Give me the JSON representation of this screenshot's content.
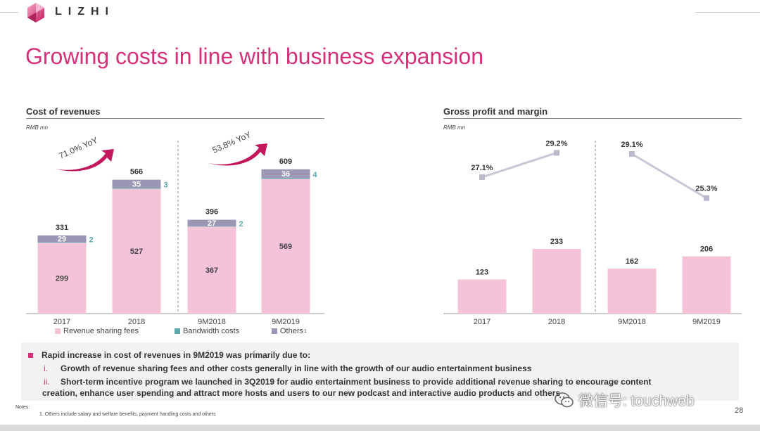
{
  "header": {
    "logo_text": "LIZHI",
    "title": "Growing costs in line with business expansion",
    "brand_color": "#d4317a"
  },
  "cost_chart": {
    "section_title": "Cost of revenues",
    "unit": "RMB mn",
    "arrow_labels": [
      "71.0% YoY",
      "53.8% YoY"
    ],
    "legend": [
      {
        "label": "Revenue sharing fees",
        "color": "#f4c3d8"
      },
      {
        "label": "Bandwidth costs",
        "color": "#5aa9ad"
      },
      {
        "label": "Others",
        "color": "#9c95b3",
        "sup": "1"
      }
    ]
  },
  "gross_chart": {
    "section_title": "Gross profit and margin",
    "unit": "RMB mn"
  },
  "chart_data": [
    {
      "type": "bar",
      "title": "Cost of revenues",
      "unit": "RMB mn",
      "categories": [
        "2017",
        "2018",
        "9M2018",
        "9M2019"
      ],
      "series": [
        {
          "name": "Revenue sharing fees",
          "values": [
            299,
            527,
            367,
            569
          ],
          "color": "#f4c3d8"
        },
        {
          "name": "Bandwidth costs",
          "values": [
            2,
            3,
            2,
            4
          ],
          "color": "#5aa9ad"
        },
        {
          "name": "Others",
          "values": [
            29,
            35,
            27,
            36
          ],
          "color": "#9c95b3"
        }
      ],
      "totals": [
        331,
        566,
        396,
        609
      ],
      "growth": [
        {
          "label": "71.0% YoY",
          "from": "2017",
          "to": "2018"
        },
        {
          "label": "53.8% YoY",
          "from": "9M2018",
          "to": "9M2019"
        }
      ]
    },
    {
      "type": "bar",
      "title": "Gross profit and margin",
      "unit": "RMB mn",
      "categories": [
        "2017",
        "2018",
        "9M2018",
        "9M2019"
      ],
      "values": [
        123,
        233,
        162,
        206
      ],
      "margin": [
        "27.1%",
        "29.2%",
        "29.1%",
        "25.3%"
      ],
      "margin_values": [
        27.1,
        29.2,
        29.1,
        25.3
      ]
    }
  ],
  "bullets": {
    "heading": "Rapid increase in cost of revenues in 9M2019 was primarily due to:",
    "items": [
      {
        "num": "i.",
        "text": "Growth of revenue sharing fees and other costs generally in line with the growth of our audio entertainment business"
      },
      {
        "num": "ii.",
        "line1": "Short-term incentive program we launched in 3Q2019 for audio entertainment business to provide additional revenue sharing to encourage content",
        "line2": "creation, enhance user spending and attract more hosts and users to our new podcast and interactive audio products and others"
      }
    ]
  },
  "notes": {
    "label": "Notes:",
    "items": [
      "1. Others include salary and welfare benefits, payment handling costs and others"
    ]
  },
  "page_number": "28",
  "watermark": "微信号: touchweb"
}
